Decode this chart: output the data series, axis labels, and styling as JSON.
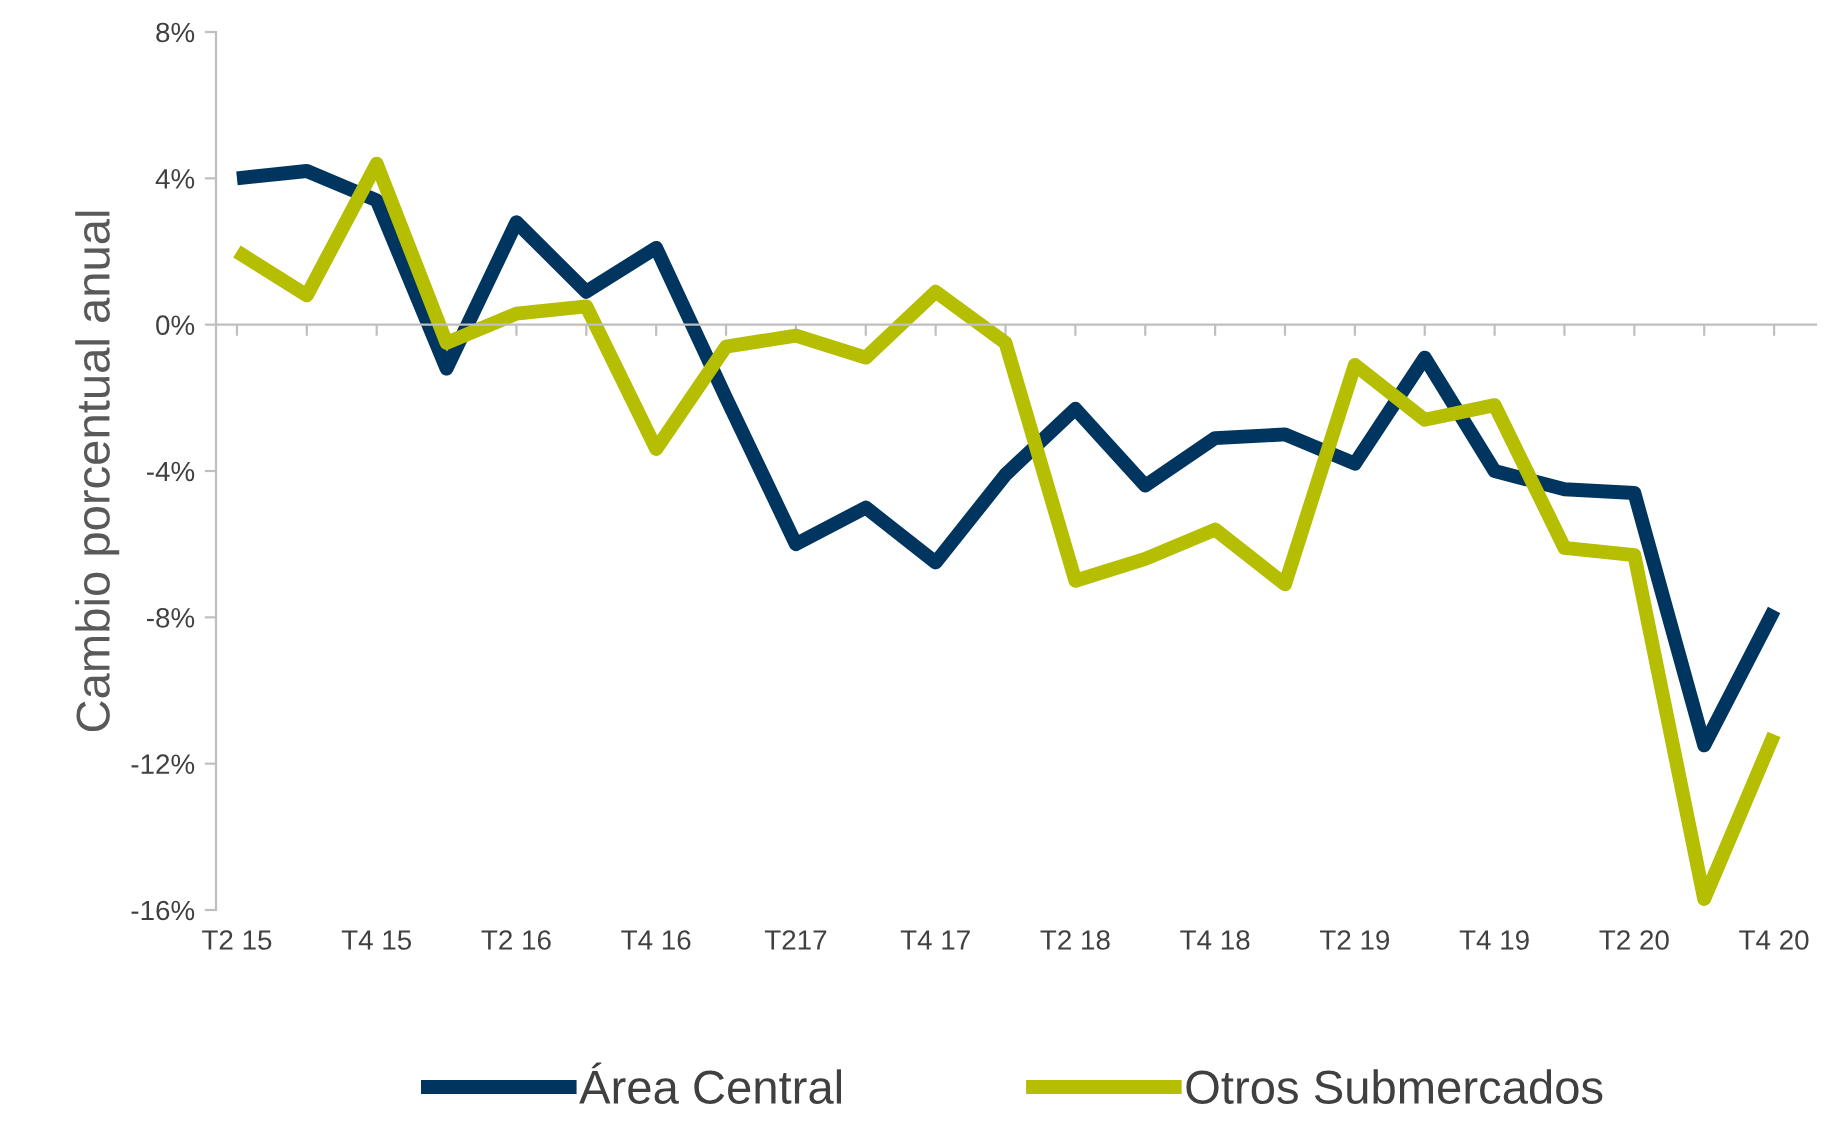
{
  "chart_data": {
    "type": "line",
    "ylabel": "Cambio porcentual anual",
    "categories": [
      "T2 15",
      null,
      "T4 15",
      null,
      "T2 16",
      null,
      "T4 16",
      null,
      "T217",
      null,
      "T4 17",
      null,
      "T2 18",
      null,
      "T4 18",
      null,
      "T2 19",
      null,
      "T4 19",
      null,
      "T2 20",
      null,
      "T4 20"
    ],
    "series": [
      {
        "name": "Área Central",
        "color": "#00355f",
        "values": [
          4.0,
          4.2,
          3.4,
          -1.2,
          2.8,
          0.9,
          2.1,
          -2.0,
          -6.0,
          -5.0,
          -6.5,
          -4.1,
          -2.3,
          -4.4,
          -3.1,
          -3.0,
          -3.8,
          -0.9,
          -4.0,
          -4.5,
          -4.6,
          -11.5,
          -7.8
        ]
      },
      {
        "name": "Otros Submercados",
        "color": "#b5be00",
        "values": [
          2.0,
          0.8,
          4.4,
          -0.5,
          0.3,
          0.5,
          -3.4,
          -0.6,
          -0.3,
          -0.9,
          0.9,
          -0.5,
          -7.0,
          -6.4,
          -5.6,
          -7.1,
          -1.1,
          -2.6,
          -2.2,
          -6.1,
          -6.3,
          -15.7,
          -11.2
        ]
      }
    ],
    "ylim": [
      -16,
      8
    ],
    "yticks": [
      {
        "value": -16,
        "label": "-16%"
      },
      {
        "value": -12,
        "label": "-12%"
      },
      {
        "value": -8,
        "label": "-8%"
      },
      {
        "value": -4,
        "label": "-4%"
      },
      {
        "value": 0,
        "label": "0%"
      },
      {
        "value": 4,
        "label": "4%"
      },
      {
        "value": 8,
        "label": "8%"
      }
    ],
    "legend": "bottom",
    "marker": "none",
    "line_style": "solid"
  }
}
